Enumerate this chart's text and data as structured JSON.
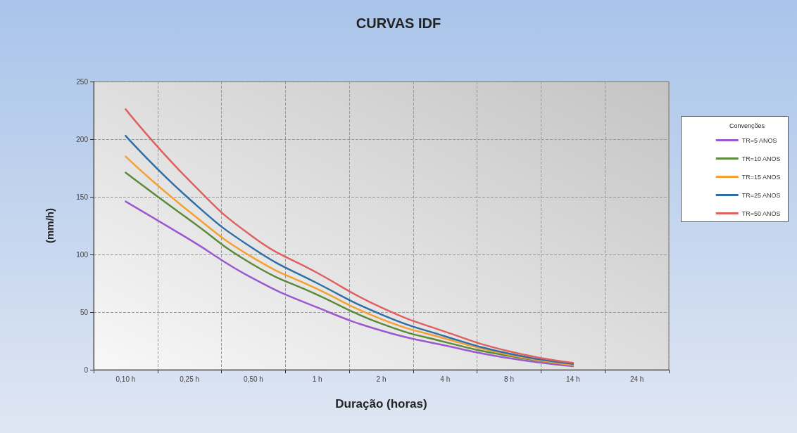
{
  "chart_data": {
    "type": "line",
    "title": "CURVAS IDF",
    "xlabel": "Duração (horas)",
    "ylabel": "(mm/h)",
    "legend_title": "Convenções",
    "categories": [
      "0,10 h",
      "0,25 h",
      "0,50 h",
      "1 h",
      "2 h",
      "4 h",
      "8 h",
      "14 h",
      "24 h"
    ],
    "series": [
      {
        "name": "TR=5 ANOS",
        "color": "#9b59d0",
        "values": [
          146,
          113,
          79,
          54,
          34,
          21,
          10,
          3,
          null
        ]
      },
      {
        "name": "TR=10 ANOS",
        "color": "#5a8a3a",
        "values": [
          171,
          130,
          91,
          65,
          40,
          24,
          12,
          4,
          null
        ]
      },
      {
        "name": "TR=15 ANOS",
        "color": "#f5a030",
        "values": [
          185,
          137,
          97,
          70,
          44,
          27,
          13,
          4,
          null
        ]
      },
      {
        "name": "TR=25 ANOS",
        "color": "#2f6fa8",
        "values": [
          203,
          148,
          105,
          75,
          48,
          29,
          14,
          5,
          null
        ]
      },
      {
        "name": "TR=50 ANOS",
        "color": "#e06060",
        "values": [
          226,
          164,
          115,
          84,
          54,
          33,
          16,
          6,
          null
        ]
      }
    ],
    "ylim": [
      0,
      250
    ],
    "yticks": [
      0,
      50,
      100,
      150,
      200,
      250
    ],
    "grid": true,
    "legend": "right",
    "marker": "none",
    "line_style": "solid"
  }
}
